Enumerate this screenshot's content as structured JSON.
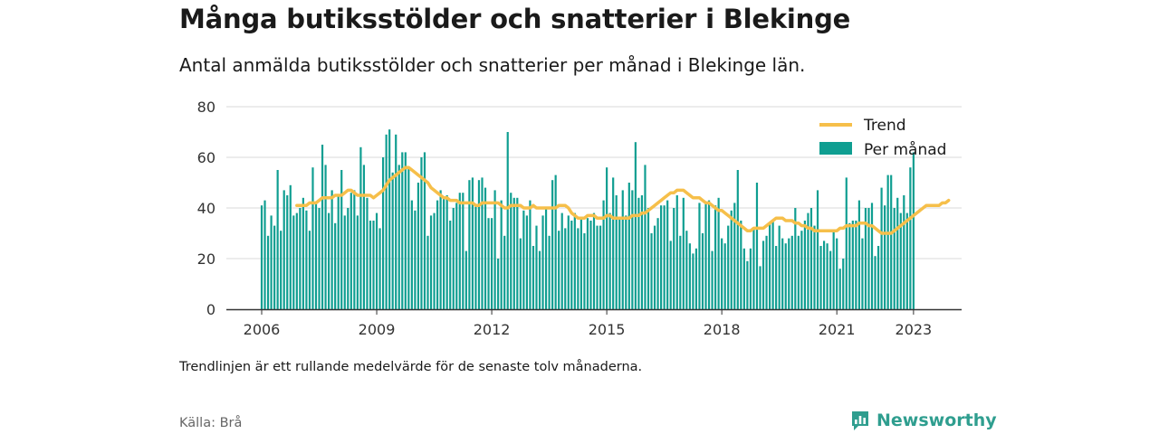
{
  "title": "Många butiksstölder och snatterier i Blekinge",
  "subtitle": "Antal anmälda butiksstölder och snatterier per månad i Blekinge län.",
  "note": "Trendlinjen är ett rullande medelvärde för de senaste tolv månaderna.",
  "source": "Källa: Brå",
  "brand": {
    "name": "Newsworthy",
    "icon": "newsworthy-logo-icon",
    "color": "#2f9e8f"
  },
  "colors": {
    "bars": "#0f9e91",
    "trend": "#f6bf4a",
    "grid": "#d9d9d9",
    "axis": "#333333"
  },
  "chart_data": {
    "type": "bar",
    "x_start": "2006-01",
    "x_end": "2023-05",
    "ylim": [
      0,
      80
    ],
    "yticks": [
      "0",
      "20",
      "40",
      "60",
      "80"
    ],
    "xticks": [
      "2006",
      "2009",
      "2012",
      "2015",
      "2018",
      "2021",
      "2023"
    ],
    "legend": {
      "position": "top-right",
      "trend": "Trend",
      "bars": "Per månad"
    },
    "values": [
      41,
      43,
      29,
      37,
      33,
      55,
      31,
      47,
      45,
      49,
      37,
      38,
      40,
      44,
      39,
      31,
      56,
      42,
      40,
      65,
      57,
      38,
      47,
      34,
      45,
      55,
      37,
      40,
      46,
      47,
      37,
      64,
      57,
      44,
      35,
      35,
      38,
      32,
      60,
      69,
      71,
      54,
      69,
      57,
      62,
      62,
      56,
      43,
      39,
      50,
      60,
      62,
      29,
      37,
      38,
      43,
      47,
      44,
      45,
      35,
      40,
      42,
      46,
      46,
      23,
      51,
      52,
      41,
      51,
      52,
      48,
      36,
      36,
      47,
      20,
      43,
      29,
      70,
      46,
      44,
      44,
      28,
      39,
      37,
      43,
      25,
      33,
      23,
      37,
      40,
      29,
      51,
      53,
      31,
      38,
      32,
      37,
      35,
      38,
      32,
      36,
      30,
      36,
      35,
      38,
      33,
      33,
      43,
      56,
      38,
      52,
      45,
      36,
      47,
      37,
      50,
      47,
      66,
      44,
      45,
      57,
      40,
      30,
      33,
      36,
      41,
      41,
      43,
      27,
      40,
      45,
      29,
      44,
      31,
      26,
      22,
      24,
      42,
      30,
      42,
      43,
      23,
      41,
      44,
      28,
      26,
      33,
      39,
      42,
      55,
      35,
      24,
      19,
      24,
      32,
      50,
      17,
      27,
      29,
      34,
      35,
      25,
      33,
      28,
      26,
      28,
      29,
      40,
      29,
      31,
      35,
      38,
      40,
      33,
      47,
      25,
      27,
      26,
      23,
      31,
      28,
      16,
      20,
      52,
      34,
      35,
      35,
      43,
      28,
      40,
      40,
      42,
      21,
      25,
      48,
      41,
      53,
      53,
      40,
      44,
      38,
      45,
      38,
      56,
      62
    ],
    "trend": [
      41,
      41,
      41,
      41,
      42,
      42,
      42,
      43,
      44,
      44,
      44,
      44,
      45,
      45,
      45,
      46,
      47,
      47,
      46,
      45,
      45,
      45,
      45,
      45,
      44,
      45,
      46,
      47,
      49,
      51,
      52,
      53,
      54,
      55,
      56,
      56,
      55,
      54,
      53,
      52,
      51,
      50,
      48,
      47,
      46,
      45,
      44,
      44,
      43,
      43,
      43,
      42,
      42,
      42,
      42,
      42,
      41,
      41,
      42,
      42,
      42,
      42,
      42,
      42,
      41,
      40,
      40,
      41,
      41,
      41,
      41,
      40,
      40,
      40,
      41,
      40,
      40,
      40,
      40,
      40,
      40,
      40,
      41,
      41,
      41,
      40,
      38,
      37,
      36,
      36,
      36,
      37,
      37,
      37,
      36,
      36,
      36,
      37,
      37,
      36,
      36,
      36,
      36,
      36,
      36,
      37,
      37,
      37,
      38,
      38,
      39,
      40,
      41,
      42,
      43,
      44,
      45,
      46,
      46,
      47,
      47,
      47,
      46,
      45,
      44,
      44,
      44,
      43,
      42,
      42,
      41,
      40,
      39,
      39,
      38,
      37,
      36,
      35,
      34,
      33,
      32,
      31,
      31,
      32,
      32,
      32,
      32,
      33,
      34,
      35,
      36,
      36,
      36,
      35,
      35,
      35,
      34,
      34,
      33,
      33,
      32,
      32,
      31,
      31,
      31,
      31,
      31,
      31,
      31,
      31,
      32,
      32,
      33,
      33,
      33,
      33,
      34,
      34,
      34,
      33,
      33,
      32,
      31,
      30,
      30,
      30,
      30,
      31,
      32,
      33,
      34,
      35,
      36,
      37,
      38,
      39,
      40,
      41,
      41,
      41,
      41,
      41,
      42,
      42,
      43
    ]
  }
}
